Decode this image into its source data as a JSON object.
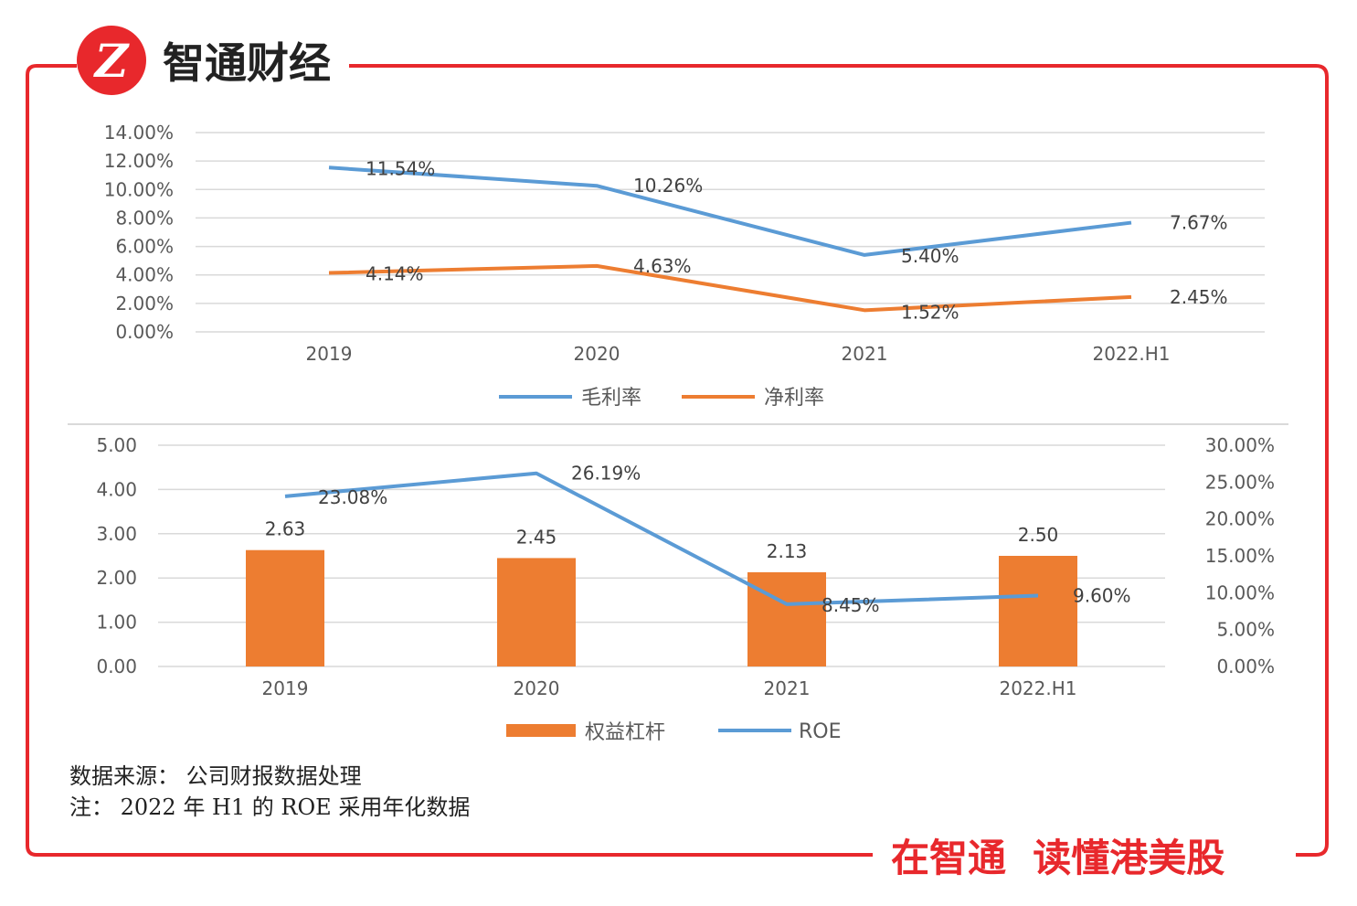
{
  "brand": {
    "logo_letter": "Z",
    "name": "智通财经",
    "slogan": "在智通  读懂港美股",
    "accent_color": "#e8282c"
  },
  "chart_data": [
    {
      "type": "line",
      "categories": [
        "2019",
        "2020",
        "2021",
        "2022.H1"
      ],
      "series": [
        {
          "name": "毛利率",
          "values": [
            11.54,
            10.26,
            5.4,
            7.67
          ],
          "labels": [
            "11.54%",
            "10.26%",
            "5.40%",
            "7.67%"
          ],
          "color": "#5b9bd5"
        },
        {
          "name": "净利率",
          "values": [
            4.14,
            4.63,
            1.52,
            2.45
          ],
          "labels": [
            "4.14%",
            "4.63%",
            "1.52%",
            "2.45%"
          ],
          "color": "#ed7d31"
        }
      ],
      "y_ticks": [
        "14.00%",
        "12.00%",
        "10.00%",
        "8.00%",
        "6.00%",
        "4.00%",
        "2.00%",
        "0.00%"
      ],
      "ylim": [
        0,
        14
      ],
      "legend_position": "bottom-center"
    },
    {
      "type": "bar+line",
      "categories": [
        "2019",
        "2020",
        "2021",
        "2022.H1"
      ],
      "bar_series": {
        "name": "权益杠杆",
        "values": [
          2.63,
          2.45,
          2.13,
          2.5
        ],
        "labels": [
          "2.63",
          "2.45",
          "2.13",
          "2.50"
        ],
        "color": "#ed7d31"
      },
      "line_series": {
        "name": "ROE",
        "values": [
          23.08,
          26.19,
          8.45,
          9.6
        ],
        "labels": [
          "23.08%",
          "26.19%",
          "8.45%",
          "9.60%"
        ],
        "color": "#5b9bd5"
      },
      "y_left_ticks": [
        "5.00",
        "4.00",
        "3.00",
        "2.00",
        "1.00",
        "0.00"
      ],
      "y_left_lim": [
        0,
        5
      ],
      "y_right_ticks": [
        "30.00%",
        "25.00%",
        "20.00%",
        "15.00%",
        "10.00%",
        "5.00%",
        "0.00%"
      ],
      "y_right_lim": [
        0,
        30
      ],
      "legend_position": "bottom-center"
    }
  ],
  "notes": {
    "source": "数据来源： 公司财报数据处理",
    "note": "注： 2022 年 H1 的 ROE 采用年化数据"
  }
}
